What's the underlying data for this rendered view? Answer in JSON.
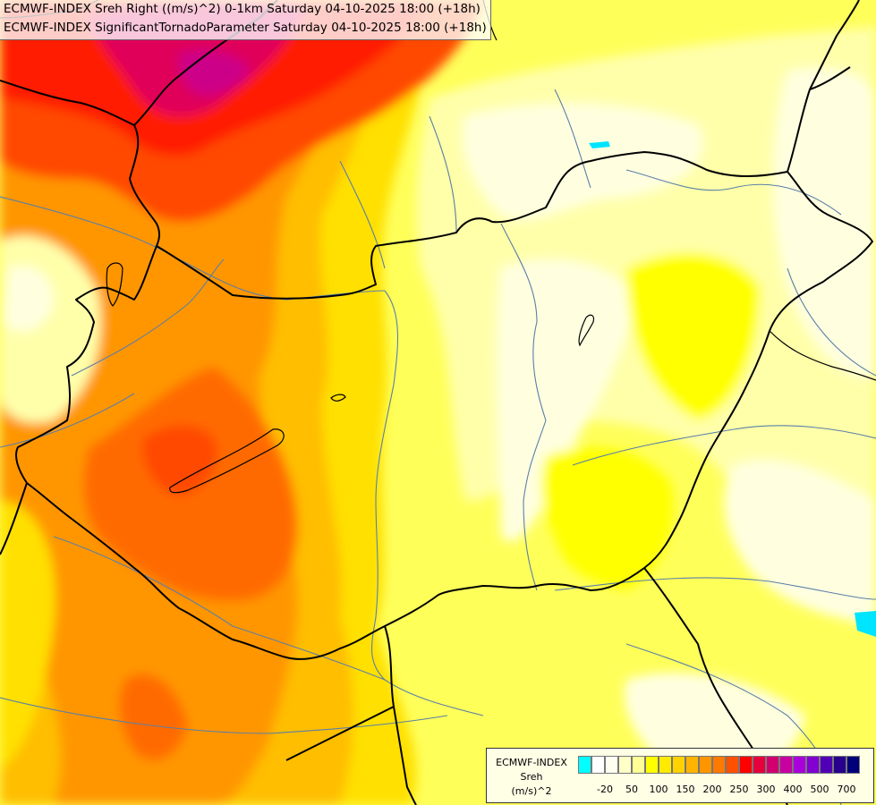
{
  "title": {
    "line1": "ECMWF-INDEX Sreh Right ((m/s)^2) 0-1km Saturday 04-10-2025 18:00 (+18h)",
    "line2": "ECMWF-INDEX SignificantTornadoParameter Saturday 04-10-2025 18:00 (+18h)"
  },
  "legend": {
    "source": "ECMWF-INDEX",
    "variable": "Sreh",
    "unit": "(m/s)^2",
    "colors": [
      "#00ffff",
      "#ffffff",
      "#fffff0",
      "#ffffc8",
      "#ffff96",
      "#ffff00",
      "#ffea00",
      "#ffd200",
      "#ffb400",
      "#ff9600",
      "#ff7800",
      "#ff5000",
      "#ff0000",
      "#e6003c",
      "#d2006e",
      "#c800a0",
      "#aa00dc",
      "#8200d2",
      "#5000b4",
      "#28008c",
      "#000078"
    ],
    "ticks": [
      "-20",
      "50",
      "100",
      "150",
      "200",
      "250",
      "300",
      "400",
      "500",
      "700"
    ]
  },
  "map_colors": {
    "lightest": "#ffffe0",
    "pale": "#ffffaa",
    "yellow": "#ffff00",
    "gold": "#ffe000",
    "amber": "#ffbe00",
    "orange": "#ff9600",
    "dark_orange": "#ff6a00",
    "red_orange": "#ff4a00",
    "red": "#ff1a00",
    "crimson": "#e0005a",
    "magenta": "#cc0088",
    "cyan": "#00e5ff",
    "border": "#000000",
    "river": "#5a7fa8"
  }
}
